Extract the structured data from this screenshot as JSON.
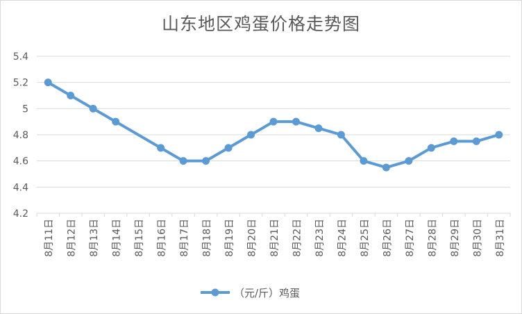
{
  "chart_data": {
    "type": "line",
    "title": "山东地区鸡蛋价格走势图",
    "xlabel": "",
    "ylabel": "",
    "categories": [
      "8月11日",
      "8月12日",
      "8月13日",
      "8月14日",
      "8月15日",
      "8月16日",
      "8月17日",
      "8月18日",
      "8月19日",
      "8月20日",
      "8月21日",
      "8月22日",
      "8月23日",
      "8月24日",
      "8月25日",
      "8月26日",
      "8月27日",
      "8月28日",
      "8月29日",
      "8月30日",
      "8月31日"
    ],
    "series": [
      {
        "name": "（元/斤）鸡蛋",
        "values": [
          5.2,
          5.1,
          5.0,
          4.9,
          null,
          4.7,
          4.6,
          4.6,
          4.7,
          4.8,
          4.9,
          4.9,
          4.85,
          4.8,
          4.6,
          4.55,
          4.6,
          4.7,
          4.75,
          4.75,
          4.8
        ],
        "color": "#5b9bd5"
      }
    ],
    "ylim": [
      4.2,
      5.4
    ],
    "yticks": [
      "4.2",
      "4.4",
      "4.6",
      "4.8",
      "5",
      "5.2",
      "5.4"
    ],
    "ytick_values": [
      4.2,
      4.4,
      4.6,
      4.8,
      5.0,
      5.2,
      5.4
    ],
    "grid": true,
    "legend_position": "bottom"
  }
}
